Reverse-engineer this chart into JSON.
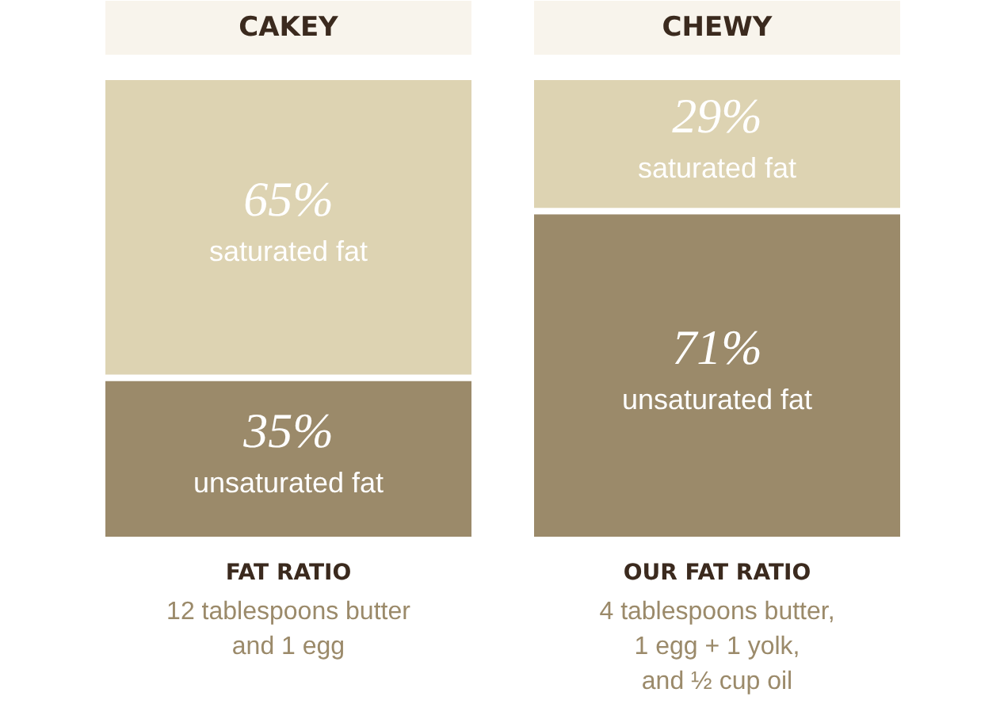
{
  "chart_data": {
    "type": "bar",
    "stacked": true,
    "categories": [
      "CAKEY",
      "CHEWY"
    ],
    "series": [
      {
        "name": "unsaturated fat",
        "color": "#9b8a6a",
        "values": [
          35,
          71
        ],
        "value_labels": [
          "35%",
          "71%"
        ]
      },
      {
        "name": "saturated fat",
        "color": "#ddd3b2",
        "values": [
          65,
          29
        ],
        "value_labels": [
          "65%",
          "29%"
        ]
      }
    ],
    "tick_labels": "x",
    "annotations": [
      "FAT RATIO",
      "12 tablespoons butter\nand 1 egg",
      "OUR FAT RATIO",
      "4 tablespoons butter,\n1 egg + 1 yolk,\nand ½ cup oil"
    ]
  }
}
